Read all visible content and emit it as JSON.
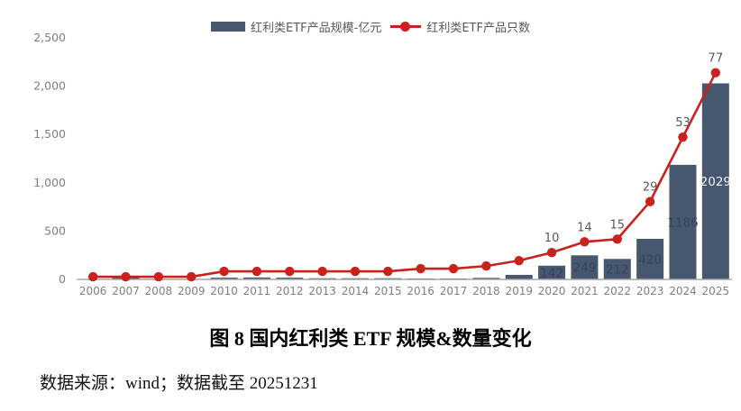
{
  "figure": {
    "title": "图 8 国内红利类 ETF 规模&数量变化",
    "source_note": "数据来源：wind；数据截至 20251231"
  },
  "legend": {
    "bar_label": "红利类ETF产品规模-亿元",
    "line_label": "红利类ETF产品只数"
  },
  "colors": {
    "bar": "#47586e",
    "line": "#c9211c",
    "axis_text": "#7f7f7f",
    "legend_text": "#595959",
    "point_label": "#595959",
    "bar_label_faint": "#37425a",
    "bar_label_light": "#eef0f4",
    "axis_line": "#a6a6a6"
  },
  "chart_data": {
    "type": "bar+line combo",
    "title": "图 8 国内红利类 ETF 规模&数量变化",
    "categories": [
      "2006",
      "2007",
      "2008",
      "2009",
      "2010",
      "2011",
      "2012",
      "2013",
      "2014",
      "2015",
      "2016",
      "2017",
      "2018",
      "2019",
      "2020",
      "2021",
      "2022",
      "2023",
      "2024",
      "2025"
    ],
    "series": [
      {
        "name": "红利类ETF产品规模-亿元",
        "type": "bar",
        "axis": "left",
        "values": [
          3,
          28,
          5,
          4,
          18,
          20,
          18,
          12,
          12,
          12,
          10,
          10,
          16,
          47,
          142,
          249,
          212,
          420,
          1186,
          2029
        ],
        "value_labels": [
          null,
          null,
          null,
          null,
          null,
          null,
          null,
          null,
          null,
          null,
          null,
          null,
          null,
          null,
          "142",
          "249",
          "212",
          "420",
          "1186",
          "2029"
        ],
        "label_styles": [
          null,
          null,
          null,
          null,
          null,
          null,
          null,
          null,
          null,
          null,
          null,
          null,
          null,
          null,
          "faint",
          "faint",
          "faint",
          "faint",
          "faint",
          "light"
        ]
      },
      {
        "name": "红利类ETF产品只数",
        "type": "line",
        "axis": "right",
        "values": [
          1,
          1,
          1,
          1,
          3,
          3,
          3,
          3,
          3,
          3,
          4,
          4,
          5,
          7,
          10,
          14,
          15,
          29,
          53,
          77
        ],
        "value_labels": [
          null,
          null,
          null,
          null,
          null,
          null,
          null,
          null,
          null,
          null,
          null,
          null,
          null,
          null,
          "10",
          "14",
          "15",
          "29",
          "53",
          "77"
        ]
      }
    ],
    "left_axis": {
      "range": [
        0,
        2500
      ],
      "ticks": [
        {
          "label": "0",
          "value": 0
        },
        {
          "label": "500",
          "value": 500
        },
        {
          "label": "1,000",
          "value": 1000
        },
        {
          "label": "1,500",
          "value": 1500
        },
        {
          "label": "2,000",
          "value": 2000
        },
        {
          "label": "2,500",
          "value": 2500
        }
      ]
    },
    "right_axis": {
      "range": [
        0,
        90
      ],
      "visible": false
    },
    "grid": false,
    "legend_position": "top"
  }
}
